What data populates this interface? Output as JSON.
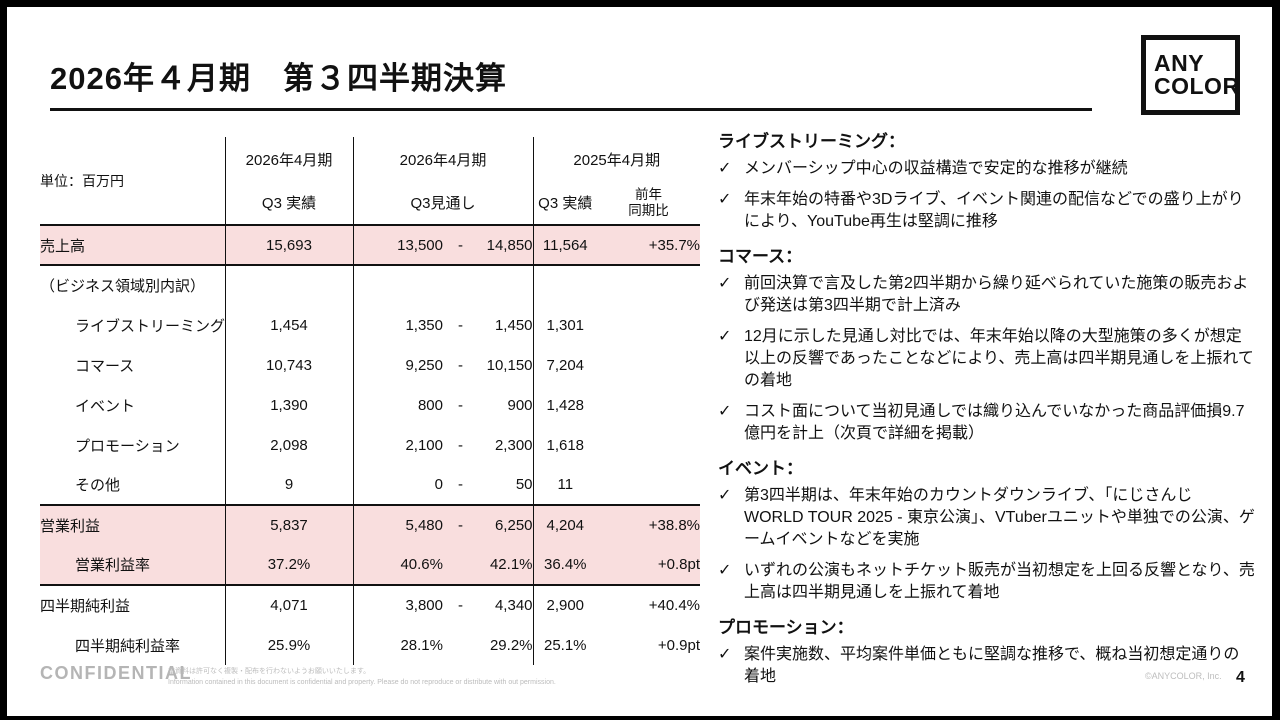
{
  "slide": {
    "title": "2026年４月期　第３四半期決算",
    "logo_line1": "ANY",
    "logo_line2": "COLOR",
    "confidential": "CONFIDENTIAL",
    "disclaimer_jp": "本資料は許可なく複製・配布を行わないようお願いいたします。",
    "disclaimer_en": "Information contained in this document is confidential and property. Please do not reproduce or distribute with out permission.",
    "copyright": "©ANYCOLOR, Inc.",
    "page_number": "4"
  },
  "table": {
    "unit_label": "単位：百万円",
    "header": {
      "group1_period": "2026年4月期",
      "group1_sub": "Q3 実績",
      "group2_period": "2026年4月期",
      "group2_sub": "Q3見通し",
      "group3_period": "2025年4月期",
      "group3_sub": "Q3 実績",
      "group3_sub2_line1": "前年",
      "group3_sub2_line2": "同期比"
    },
    "rows": [
      {
        "label": "売上高",
        "indent": 0,
        "actual": "15,693",
        "fc_low": "13,500",
        "dash": "-",
        "fc_high": "14,850",
        "prior": "11,564",
        "yoy": "+35.7%",
        "highlight": true,
        "border_bottom": true
      },
      {
        "label": "（ビジネス領域別内訳）",
        "indent": 0,
        "actual": "",
        "fc_low": "",
        "dash": "",
        "fc_high": "",
        "prior": "",
        "yoy": "",
        "highlight": false,
        "border_bottom": false
      },
      {
        "label": "ライブストリーミング",
        "indent": 1,
        "actual": "1,454",
        "fc_low": "1,350",
        "dash": "-",
        "fc_high": "1,450",
        "prior": "1,301",
        "yoy": "",
        "highlight": false,
        "border_bottom": false
      },
      {
        "label": "コマース",
        "indent": 1,
        "actual": "10,743",
        "fc_low": "9,250",
        "dash": "-",
        "fc_high": "10,150",
        "prior": "7,204",
        "yoy": "",
        "highlight": false,
        "border_bottom": false
      },
      {
        "label": "イベント",
        "indent": 1,
        "actual": "1,390",
        "fc_low": "800",
        "dash": "-",
        "fc_high": "900",
        "prior": "1,428",
        "yoy": "",
        "highlight": false,
        "border_bottom": false
      },
      {
        "label": "プロモーション",
        "indent": 1,
        "actual": "2,098",
        "fc_low": "2,100",
        "dash": "-",
        "fc_high": "2,300",
        "prior": "1,618",
        "yoy": "",
        "highlight": false,
        "border_bottom": false
      },
      {
        "label": "その他",
        "indent": 1,
        "actual": "9",
        "fc_low": "0",
        "dash": "-",
        "fc_high": "50",
        "prior": "11",
        "yoy": "",
        "highlight": false,
        "border_bottom": true
      },
      {
        "label": "営業利益",
        "indent": 0,
        "actual": "5,837",
        "fc_low": "5,480",
        "dash": "-",
        "fc_high": "6,250",
        "prior": "4,204",
        "yoy": "+38.8%",
        "highlight": true,
        "border_bottom": false
      },
      {
        "label": "営業利益率",
        "indent": 1,
        "actual": "37.2%",
        "fc_low": "40.6%",
        "dash": "",
        "fc_high": "42.1%",
        "prior": "36.4%",
        "yoy": "+0.8pt",
        "highlight": true,
        "border_bottom": true
      },
      {
        "label": "四半期純利益",
        "indent": 0,
        "actual": "4,071",
        "fc_low": "3,800",
        "dash": "-",
        "fc_high": "4,340",
        "prior": "2,900",
        "yoy": "+40.4%",
        "highlight": false,
        "border_bottom": false
      },
      {
        "label": "四半期純利益率",
        "indent": 1,
        "actual": "25.9%",
        "fc_low": "28.1%",
        "dash": "",
        "fc_high": "29.2%",
        "prior": "25.1%",
        "yoy": "+0.9pt",
        "highlight": false,
        "border_bottom": false
      }
    ]
  },
  "notes": {
    "check_glyph": "✓",
    "sections": [
      {
        "heading": "ライブストリーミング：",
        "bullets": [
          "メンバーシップ中心の収益構造で安定的な推移が継続",
          "年末年始の特番や3Dライブ、イベント関連の配信などでの盛り上がりにより、YouTube再生は堅調に推移"
        ]
      },
      {
        "heading": "コマース：",
        "bullets": [
          "前回決算で言及した第2四半期から繰り延べられていた施策の販売および発送は第3四半期で計上済み",
          "12月に示した見通し対比では、年末年始以降の大型施策の多くが想定以上の反響であったことなどにより、売上高は四半期見通しを上振れての着地",
          "コスト面について当初見通しでは織り込んでいなかった商品評価損9.7億円を計上（次頁で詳細を掲載）"
        ]
      },
      {
        "heading": "イベント：",
        "bullets": [
          "第3四半期は、年末年始のカウントダウンライブ、「にじさんじ WORLD TOUR 2025 - 東京公演」、VTuberユニットや単独での公演、ゲームイベントなどを実施",
          "いずれの公演もネットチケット販売が当初想定を上回る反響となり、売上高は四半期見通しを上振れて着地"
        ]
      },
      {
        "heading": "プロモーション：",
        "bullets": [
          "案件実施数、平均案件単価ともに堅調な推移で、概ね当初想定通りの着地"
        ]
      }
    ]
  },
  "colors": {
    "highlight_pink": "#F9DEDE",
    "line_black": "#111111",
    "footer_gray": "#B5B5B5"
  }
}
